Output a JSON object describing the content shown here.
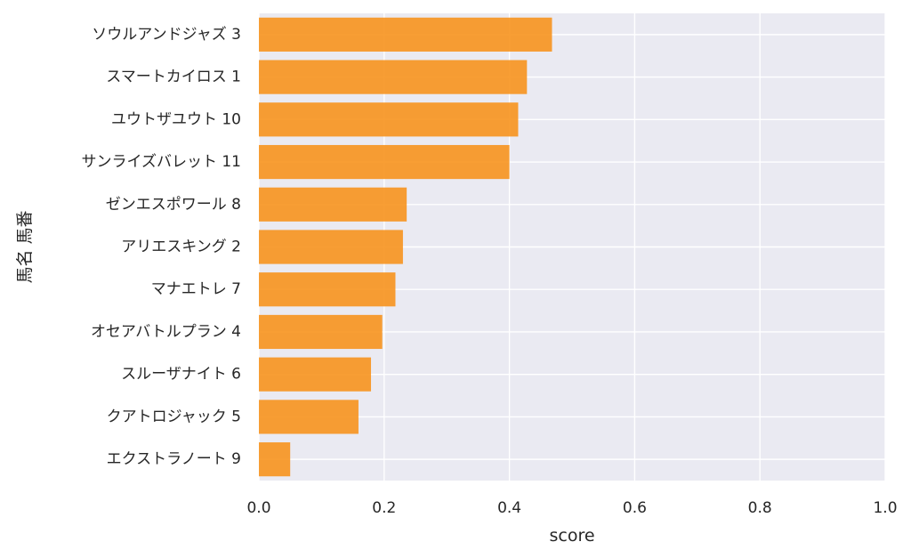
{
  "chart_data": {
    "type": "bar",
    "orientation": "horizontal",
    "categories": [
      "ソウルアンドジャズ 3",
      "スマートカイロス 1",
      "ユウトザユウト 10",
      "サンライズバレット 11",
      "ゼンエスポワール 8",
      "アリエスキング 2",
      "マナエトレ 7",
      "オセアバトルプラン 4",
      "スルーザナイト 6",
      "クアトロジャック 5",
      "エクストラノート 9"
    ],
    "values": [
      0.468,
      0.428,
      0.414,
      0.4,
      0.236,
      0.23,
      0.218,
      0.197,
      0.179,
      0.159,
      0.05
    ],
    "xlabel": "score",
    "ylabel": "馬名 馬番",
    "xlim": [
      0.0,
      1.0
    ],
    "xticks": [
      "0.0",
      "0.2",
      "0.4",
      "0.6",
      "0.8",
      "1.0"
    ],
    "bar_color": "#f7931e",
    "background_color": "#eaeaf2",
    "grid": true
  }
}
